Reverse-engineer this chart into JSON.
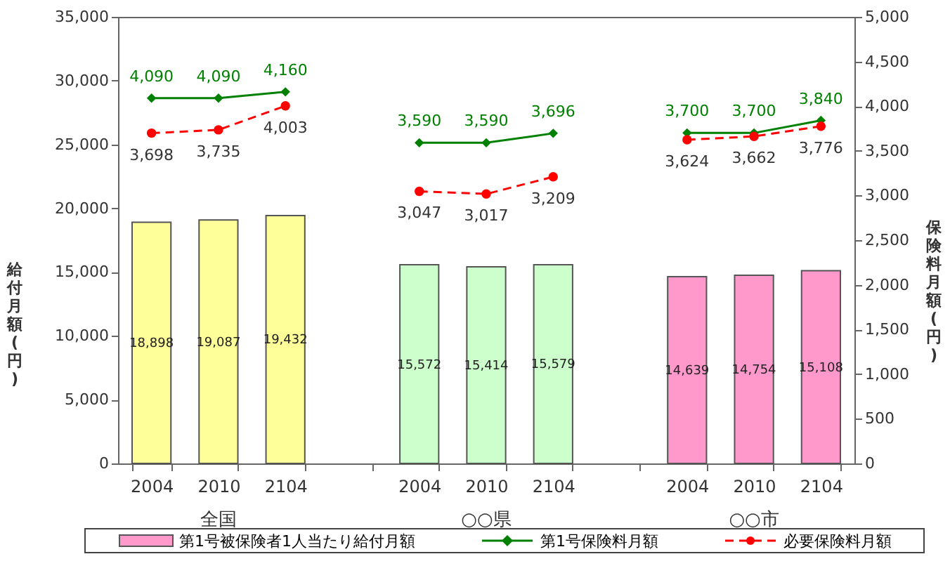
{
  "chart_data": {
    "type": "bar",
    "categories": [
      "2004",
      "2010",
      "2104",
      null,
      "2004",
      "2010",
      "2104",
      null,
      "2004",
      "2010",
      "2104"
    ],
    "ylabel": "給付月額(円)",
    "y2label": "保険料月額(円)",
    "ylim": [
      0,
      35000
    ],
    "yticks": [
      {
        "value": 0,
        "label": "0"
      },
      {
        "value": 5000,
        "label": "5,000"
      },
      {
        "value": 10000,
        "label": "10,000"
      },
      {
        "value": 15000,
        "label": "15,000"
      },
      {
        "value": 20000,
        "label": "20,000"
      },
      {
        "value": 25000,
        "label": "25,000"
      },
      {
        "value": 30000,
        "label": "30,000"
      },
      {
        "value": 35000,
        "label": "35,000"
      }
    ],
    "y2lim": [
      0,
      5000
    ],
    "y2ticks": [
      {
        "value": 0,
        "label": "0"
      },
      {
        "value": 500,
        "label": "500"
      },
      {
        "value": 1000,
        "label": "1,000"
      },
      {
        "value": 1500,
        "label": "1,500"
      },
      {
        "value": 2000,
        "label": "2,000"
      },
      {
        "value": 2500,
        "label": "2,500"
      },
      {
        "value": 3000,
        "label": "3,000"
      },
      {
        "value": 3500,
        "label": "3,500"
      },
      {
        "value": 4000,
        "label": "4,000"
      },
      {
        "value": 4500,
        "label": "4,500"
      },
      {
        "value": 5000,
        "label": "5,000"
      }
    ],
    "series": [
      {
        "name": "第1号被保険者1人当たり給付月額",
        "color": "#ff99cc",
        "colors": [
          "#ffff99",
          "#ffff99",
          "#ffff99",
          null,
          "#ccffcc",
          "#ccffcc",
          "#ccffcc",
          null,
          "#ff99cc",
          "#ff99cc",
          "#ff99cc"
        ],
        "values": [
          18898,
          19087,
          19432,
          null,
          15572,
          15414,
          15579,
          null,
          14639,
          14754,
          15108
        ],
        "value_labels": [
          "18,898",
          "19,087",
          "19,432",
          null,
          "15,572",
          "15,414",
          "15,579",
          null,
          "14,639",
          "14,754",
          "15,108"
        ]
      },
      {
        "name": "第1号保険料月額",
        "type": "line",
        "axis": "y2",
        "color": "#008000",
        "marker": "diamond",
        "line_style": "solid",
        "values": [
          4090,
          4090,
          4160,
          null,
          3590,
          3590,
          3696,
          null,
          3700,
          3700,
          3840
        ],
        "value_labels": [
          "4,090",
          "4,090",
          "4,160",
          null,
          "3,590",
          "3,590",
          "3,696",
          null,
          "3,700",
          "3,700",
          "3,840"
        ]
      },
      {
        "name": "必要保険料月額",
        "type": "line",
        "axis": "y2",
        "color": "#ff0000",
        "marker": "circle",
        "line_style": "dashed",
        "values": [
          3698,
          3735,
          4003,
          null,
          3047,
          3017,
          3209,
          null,
          3624,
          3662,
          3776
        ],
        "value_labels": [
          "3,698",
          "3,735",
          "4,003",
          null,
          "3,047",
          "3,017",
          "3,209",
          null,
          "3,624",
          "3,662",
          "3,776"
        ]
      }
    ],
    "annotations": [
      "全国",
      "○○県",
      "○○市"
    ],
    "data_labels": true,
    "legend": "bottom",
    "grid": false
  }
}
